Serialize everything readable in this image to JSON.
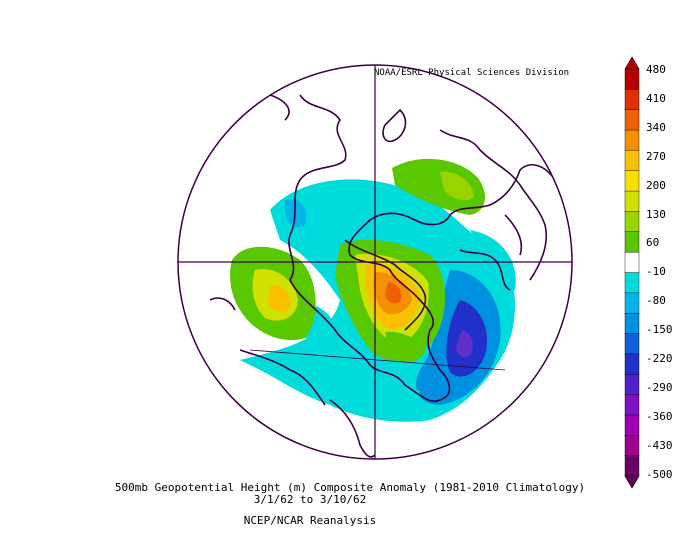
{
  "source_label": "NOAA/ESRL Physical Sciences Division",
  "caption": {
    "line1": "500mb Geopotential Height (m) Composite Anomaly (1981-2010 Climatology)",
    "line2": "3/1/62  to 3/10/62",
    "line3": "NCEP/NCAR Reanalysis"
  },
  "colorbar": {
    "labels": [
      "480",
      "410",
      "340",
      "270",
      "200",
      "130",
      "60",
      "-10",
      "-80",
      "-150",
      "-220",
      "-290",
      "-360",
      "-430",
      "-500"
    ],
    "colors": [
      "#b40000",
      "#e03000",
      "#f06000",
      "#f39000",
      "#f8c000",
      "#f5e000",
      "#d0e000",
      "#9ad400",
      "#5ac800",
      "#ffffff",
      "#00dcdc",
      "#00b4e6",
      "#0090e0",
      "#1060d8",
      "#2030c8",
      "#5020c8",
      "#8010c8",
      "#a000b4",
      "#a00090",
      "#6a0060"
    ]
  }
}
